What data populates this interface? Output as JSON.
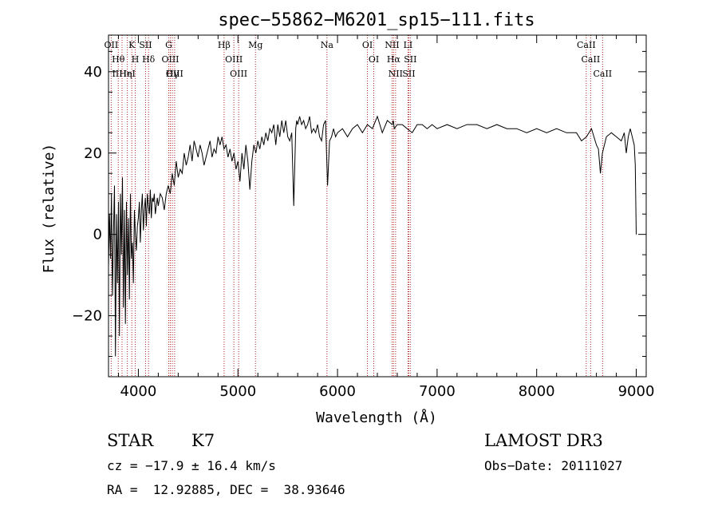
{
  "chart_data": {
    "type": "line",
    "title": "spec−55862−M6201_sp15−111.fits",
    "xlabel": "Wavelength (Å)",
    "ylabel": "Flux (relative)",
    "xlim": [
      3700,
      9100
    ],
    "ylim": [
      -35,
      49
    ],
    "x_ticks": [
      4000,
      5000,
      6000,
      7000,
      8000,
      9000
    ],
    "x_tick_labels": [
      "4000",
      "5000",
      "6000",
      "7000",
      "8000",
      "9000"
    ],
    "y_ticks": [
      -20,
      0,
      20,
      40
    ],
    "y_tick_labels": [
      "−20",
      "0",
      "20",
      "40"
    ],
    "line_color": "#000000",
    "marker_color": "#b22222",
    "series": [
      {
        "name": "flux",
        "x": [
          3700,
          3710,
          3720,
          3730,
          3740,
          3750,
          3760,
          3770,
          3780,
          3790,
          3800,
          3810,
          3820,
          3830,
          3840,
          3850,
          3860,
          3870,
          3880,
          3890,
          3900,
          3910,
          3920,
          3930,
          3940,
          3950,
          3960,
          3970,
          3980,
          3990,
          4000,
          4010,
          4020,
          4030,
          4040,
          4050,
          4060,
          4070,
          4080,
          4090,
          4100,
          4110,
          4120,
          4130,
          4140,
          4150,
          4160,
          4170,
          4180,
          4190,
          4200,
          4220,
          4240,
          4260,
          4280,
          4300,
          4320,
          4340,
          4360,
          4380,
          4400,
          4420,
          4440,
          4460,
          4480,
          4500,
          4520,
          4540,
          4560,
          4580,
          4600,
          4620,
          4640,
          4660,
          4680,
          4700,
          4720,
          4740,
          4760,
          4780,
          4800,
          4820,
          4840,
          4860,
          4880,
          4900,
          4920,
          4940,
          4960,
          4980,
          5000,
          5020,
          5040,
          5060,
          5080,
          5100,
          5120,
          5140,
          5160,
          5180,
          5200,
          5220,
          5240,
          5260,
          5280,
          5300,
          5320,
          5340,
          5360,
          5380,
          5400,
          5420,
          5440,
          5460,
          5480,
          5500,
          5520,
          5540,
          5560,
          5580,
          5590,
          5600,
          5620,
          5640,
          5660,
          5680,
          5700,
          5720,
          5740,
          5760,
          5780,
          5800,
          5820,
          5840,
          5860,
          5880,
          5890,
          5900,
          5920,
          5940,
          5960,
          5980,
          6000,
          6050,
          6100,
          6150,
          6200,
          6250,
          6300,
          6350,
          6400,
          6450,
          6500,
          6550,
          6560,
          6570,
          6600,
          6650,
          6700,
          6750,
          6800,
          6850,
          6900,
          6950,
          7000,
          7100,
          7200,
          7300,
          7400,
          7500,
          7600,
          7700,
          7800,
          7900,
          8000,
          8100,
          8200,
          8300,
          8400,
          8450,
          8500,
          8550,
          8600,
          8620,
          8640,
          8660,
          8680,
          8700,
          8750,
          8800,
          8850,
          8880,
          8900,
          8920,
          8940,
          8960,
          8980,
          8990,
          9000
        ],
        "y": [
          -8,
          5,
          -6,
          10,
          -15,
          0,
          12,
          -30,
          5,
          -12,
          8,
          -25,
          10,
          -5,
          14,
          -18,
          6,
          -22,
          8,
          -10,
          4,
          -16,
          10,
          -6,
          -2,
          -12,
          6,
          0,
          -4,
          2,
          4,
          8,
          -2,
          6,
          10,
          1,
          6,
          9,
          2,
          10,
          7,
          5,
          11,
          4,
          9,
          8,
          10,
          5,
          7,
          9,
          7,
          10,
          9,
          6,
          10,
          12,
          10,
          15,
          12,
          18,
          14,
          16,
          15,
          20,
          17,
          19,
          22,
          18,
          23,
          21,
          19,
          22,
          20,
          17,
          19,
          21,
          23,
          19,
          21,
          20,
          24,
          22,
          24,
          21,
          22,
          19,
          21,
          18,
          20,
          16,
          18,
          13,
          20,
          16,
          22,
          18,
          11,
          18,
          22,
          20,
          23,
          21,
          24,
          22,
          25,
          23,
          26,
          25,
          27,
          22,
          27,
          24,
          28,
          25,
          28,
          24,
          23,
          25,
          7,
          26,
          28,
          27,
          29,
          27,
          28,
          26,
          27,
          29,
          25,
          26,
          25,
          27,
          24,
          23,
          27,
          28,
          20,
          12,
          23,
          24,
          26,
          24,
          25,
          26,
          24,
          26,
          27,
          25,
          27,
          26,
          29,
          25,
          28,
          27,
          28,
          26,
          27,
          27,
          26,
          25,
          27,
          27,
          26,
          27,
          26,
          27,
          26,
          27,
          27,
          26,
          27,
          26,
          26,
          25,
          26,
          25,
          26,
          25,
          25,
          23,
          24,
          26,
          22,
          21,
          15,
          20,
          22,
          24,
          25,
          24,
          23,
          25,
          20,
          24,
          26,
          24,
          22,
          17,
          0
        ]
      }
    ],
    "line_markers": [
      {
        "label": "OⅠI",
        "x": 3727
      },
      {
        "label": "Hθ",
        "x": 3798
      },
      {
        "label": "ⅠⅠHη",
        "x": 3836
      },
      {
        "label": "HeⅠ",
        "x": 3889
      },
      {
        "label": "K",
        "x": 3934
      },
      {
        "label": "H",
        "x": 3969
      },
      {
        "label": "SⅠⅠ",
        "x": 4072
      },
      {
        "label": "Hδ",
        "x": 4102
      },
      {
        "label": "G",
        "x": 4305
      },
      {
        "label": "OⅠⅠⅠ",
        "x": 4321
      },
      {
        "label": "Hγ",
        "x": 4341
      },
      {
        "label": "OⅠⅠⅠ",
        "x": 4364
      },
      {
        "label": "Hβ",
        "x": 4861
      },
      {
        "label": "OⅠⅠⅠ",
        "x": 4959
      },
      {
        "label": "OⅠⅠⅠ",
        "x": 5007
      },
      {
        "label": "Mg",
        "x": 5176
      },
      {
        "label": "Na",
        "x": 5894
      },
      {
        "label": "OⅠ",
        "x": 6300
      },
      {
        "label": "OⅠ",
        "x": 6364
      },
      {
        "label": "NⅠⅠ",
        "x": 6548
      },
      {
        "label": "Hα",
        "x": 6563
      },
      {
        "label": "NⅠⅠ",
        "x": 6583
      },
      {
        "label": "SⅠⅠ",
        "x": 6716
      },
      {
        "label": "LⅠ",
        "x": 6708
      },
      {
        "label": "SⅠⅠ",
        "x": 6731
      },
      {
        "label": "CaⅠⅠ",
        "x": 8498
      },
      {
        "label": "CaⅠⅠ",
        "x": 8542
      },
      {
        "label": "CaⅠⅠ",
        "x": 8662
      }
    ]
  },
  "info": {
    "class": "STAR",
    "subclass": "K7",
    "survey": "LAMOST DR3",
    "cz": "cz = −17.9 ± 16.4 km/s",
    "obs_date": "Obs−Date: 20111027",
    "coords": "RA =  12.92885, DEC =  38.93646"
  }
}
